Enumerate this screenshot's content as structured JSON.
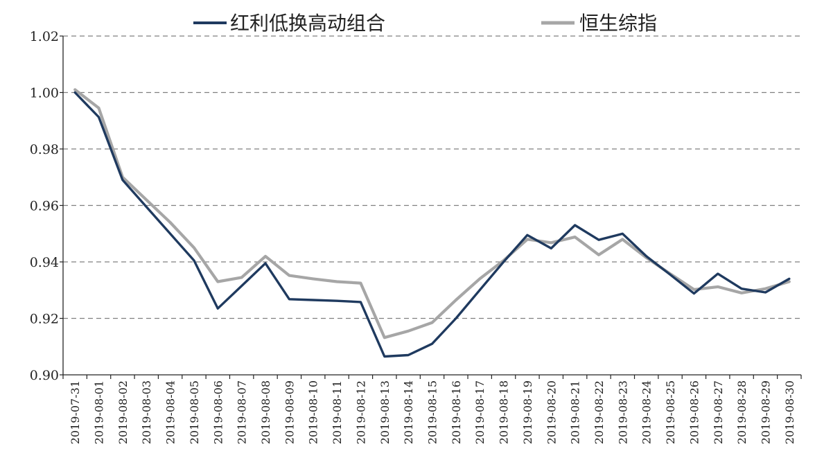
{
  "chart_data": {
    "type": "line",
    "title": "",
    "xlabel": "",
    "ylabel": "",
    "ylim": [
      0.9,
      1.02
    ],
    "yticks": [
      "0.90",
      "0.92",
      "0.94",
      "0.96",
      "0.98",
      "1.00",
      "1.02"
    ],
    "grid": "horizontal-dashed",
    "legend_position": "top",
    "x": [
      "2019-07-31",
      "2019-08-01",
      "2019-08-02",
      "2019-08-03",
      "2019-08-04",
      "2019-08-05",
      "2019-08-06",
      "2019-08-07",
      "2019-08-08",
      "2019-08-09",
      "2019-08-10",
      "2019-08-11",
      "2019-08-12",
      "2019-08-13",
      "2019-08-14",
      "2019-08-15",
      "2019-08-16",
      "2019-08-17",
      "2019-08-18",
      "2019-08-19",
      "2019-08-20",
      "2019-08-21",
      "2019-08-22",
      "2019-08-23",
      "2019-08-24",
      "2019-08-25",
      "2019-08-26",
      "2019-08-27",
      "2019-08-28",
      "2019-08-29",
      "2019-08-30"
    ],
    "series": [
      {
        "name": "红利低换高动组合",
        "color": "#1f3a5f",
        "values": [
          1.0,
          0.9913,
          0.969,
          0.9595,
          0.95,
          0.9405,
          0.9235,
          0.9315,
          0.9395,
          0.9268,
          0.9265,
          0.9262,
          0.9258,
          0.9065,
          0.907,
          0.911,
          0.92,
          0.93,
          0.94,
          0.9495,
          0.9448,
          0.953,
          0.9478,
          0.95,
          0.942,
          0.9355,
          0.9288,
          0.9358,
          0.9305,
          0.9292,
          0.934
        ]
      },
      {
        "name": "恒生综指",
        "color": "#a6a6a6",
        "values": [
          1.001,
          0.9945,
          0.97,
          0.962,
          0.954,
          0.945,
          0.933,
          0.9345,
          0.942,
          0.9352,
          0.934,
          0.933,
          0.9325,
          0.9132,
          0.9155,
          0.9185,
          0.9265,
          0.934,
          0.9405,
          0.948,
          0.9468,
          0.9488,
          0.9425,
          0.948,
          0.9415,
          0.9358,
          0.9302,
          0.9312,
          0.929,
          0.9305,
          0.933
        ]
      }
    ]
  }
}
